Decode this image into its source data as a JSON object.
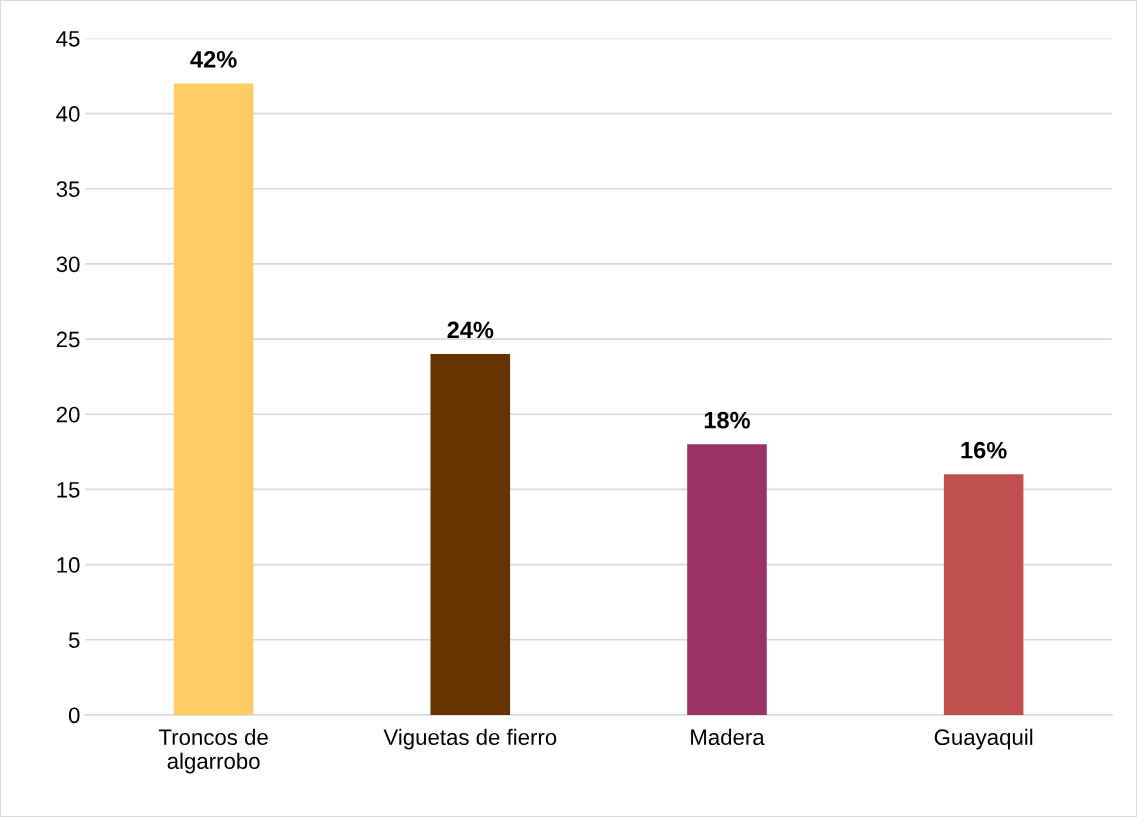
{
  "chart_data": {
    "type": "bar",
    "categories": [
      "Troncos de\nalgarrobo",
      "Viguetas de fierro",
      "Madera",
      "Guayaquil"
    ],
    "values": [
      42,
      24,
      18,
      16
    ],
    "colors": [
      "#ffcc66",
      "#663300",
      "#993366",
      "#c0504d"
    ],
    "value_labels": [
      "42%",
      "24%",
      "18%",
      "16%"
    ],
    "ylim": [
      0,
      45
    ],
    "yticks": [
      0,
      5,
      10,
      15,
      20,
      25,
      30,
      35,
      40,
      45
    ],
    "grid": "y",
    "legend": false
  }
}
